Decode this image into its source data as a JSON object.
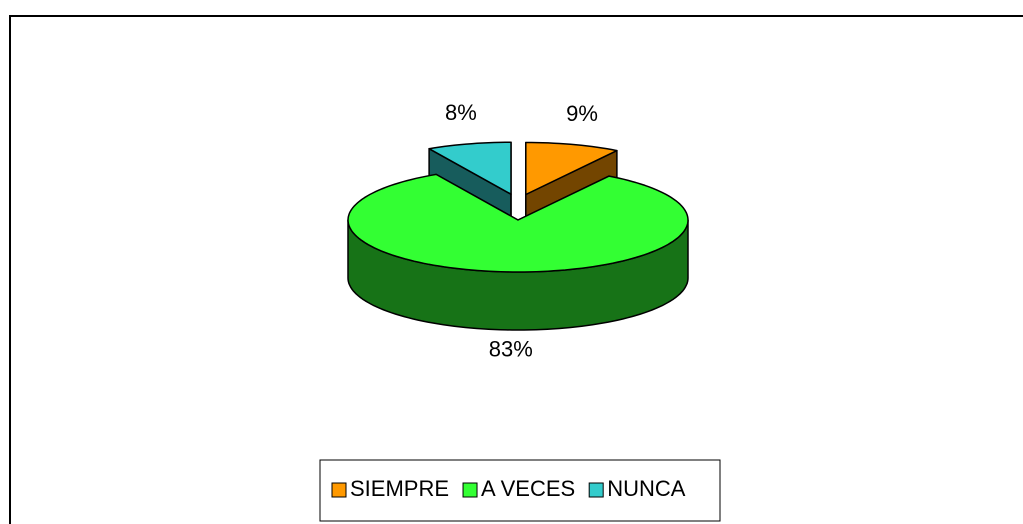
{
  "chart_data": {
    "type": "pie3d",
    "categories": [
      "SIEMPRE",
      "A VECES",
      "NUNCA"
    ],
    "values": [
      9,
      83,
      8
    ],
    "value_labels": [
      "9%",
      "83%",
      "8%"
    ],
    "colors": [
      "#ff9900",
      "#33ff33",
      "#33cccc"
    ],
    "explode": [
      true,
      false,
      true
    ],
    "legend": "bottom"
  }
}
